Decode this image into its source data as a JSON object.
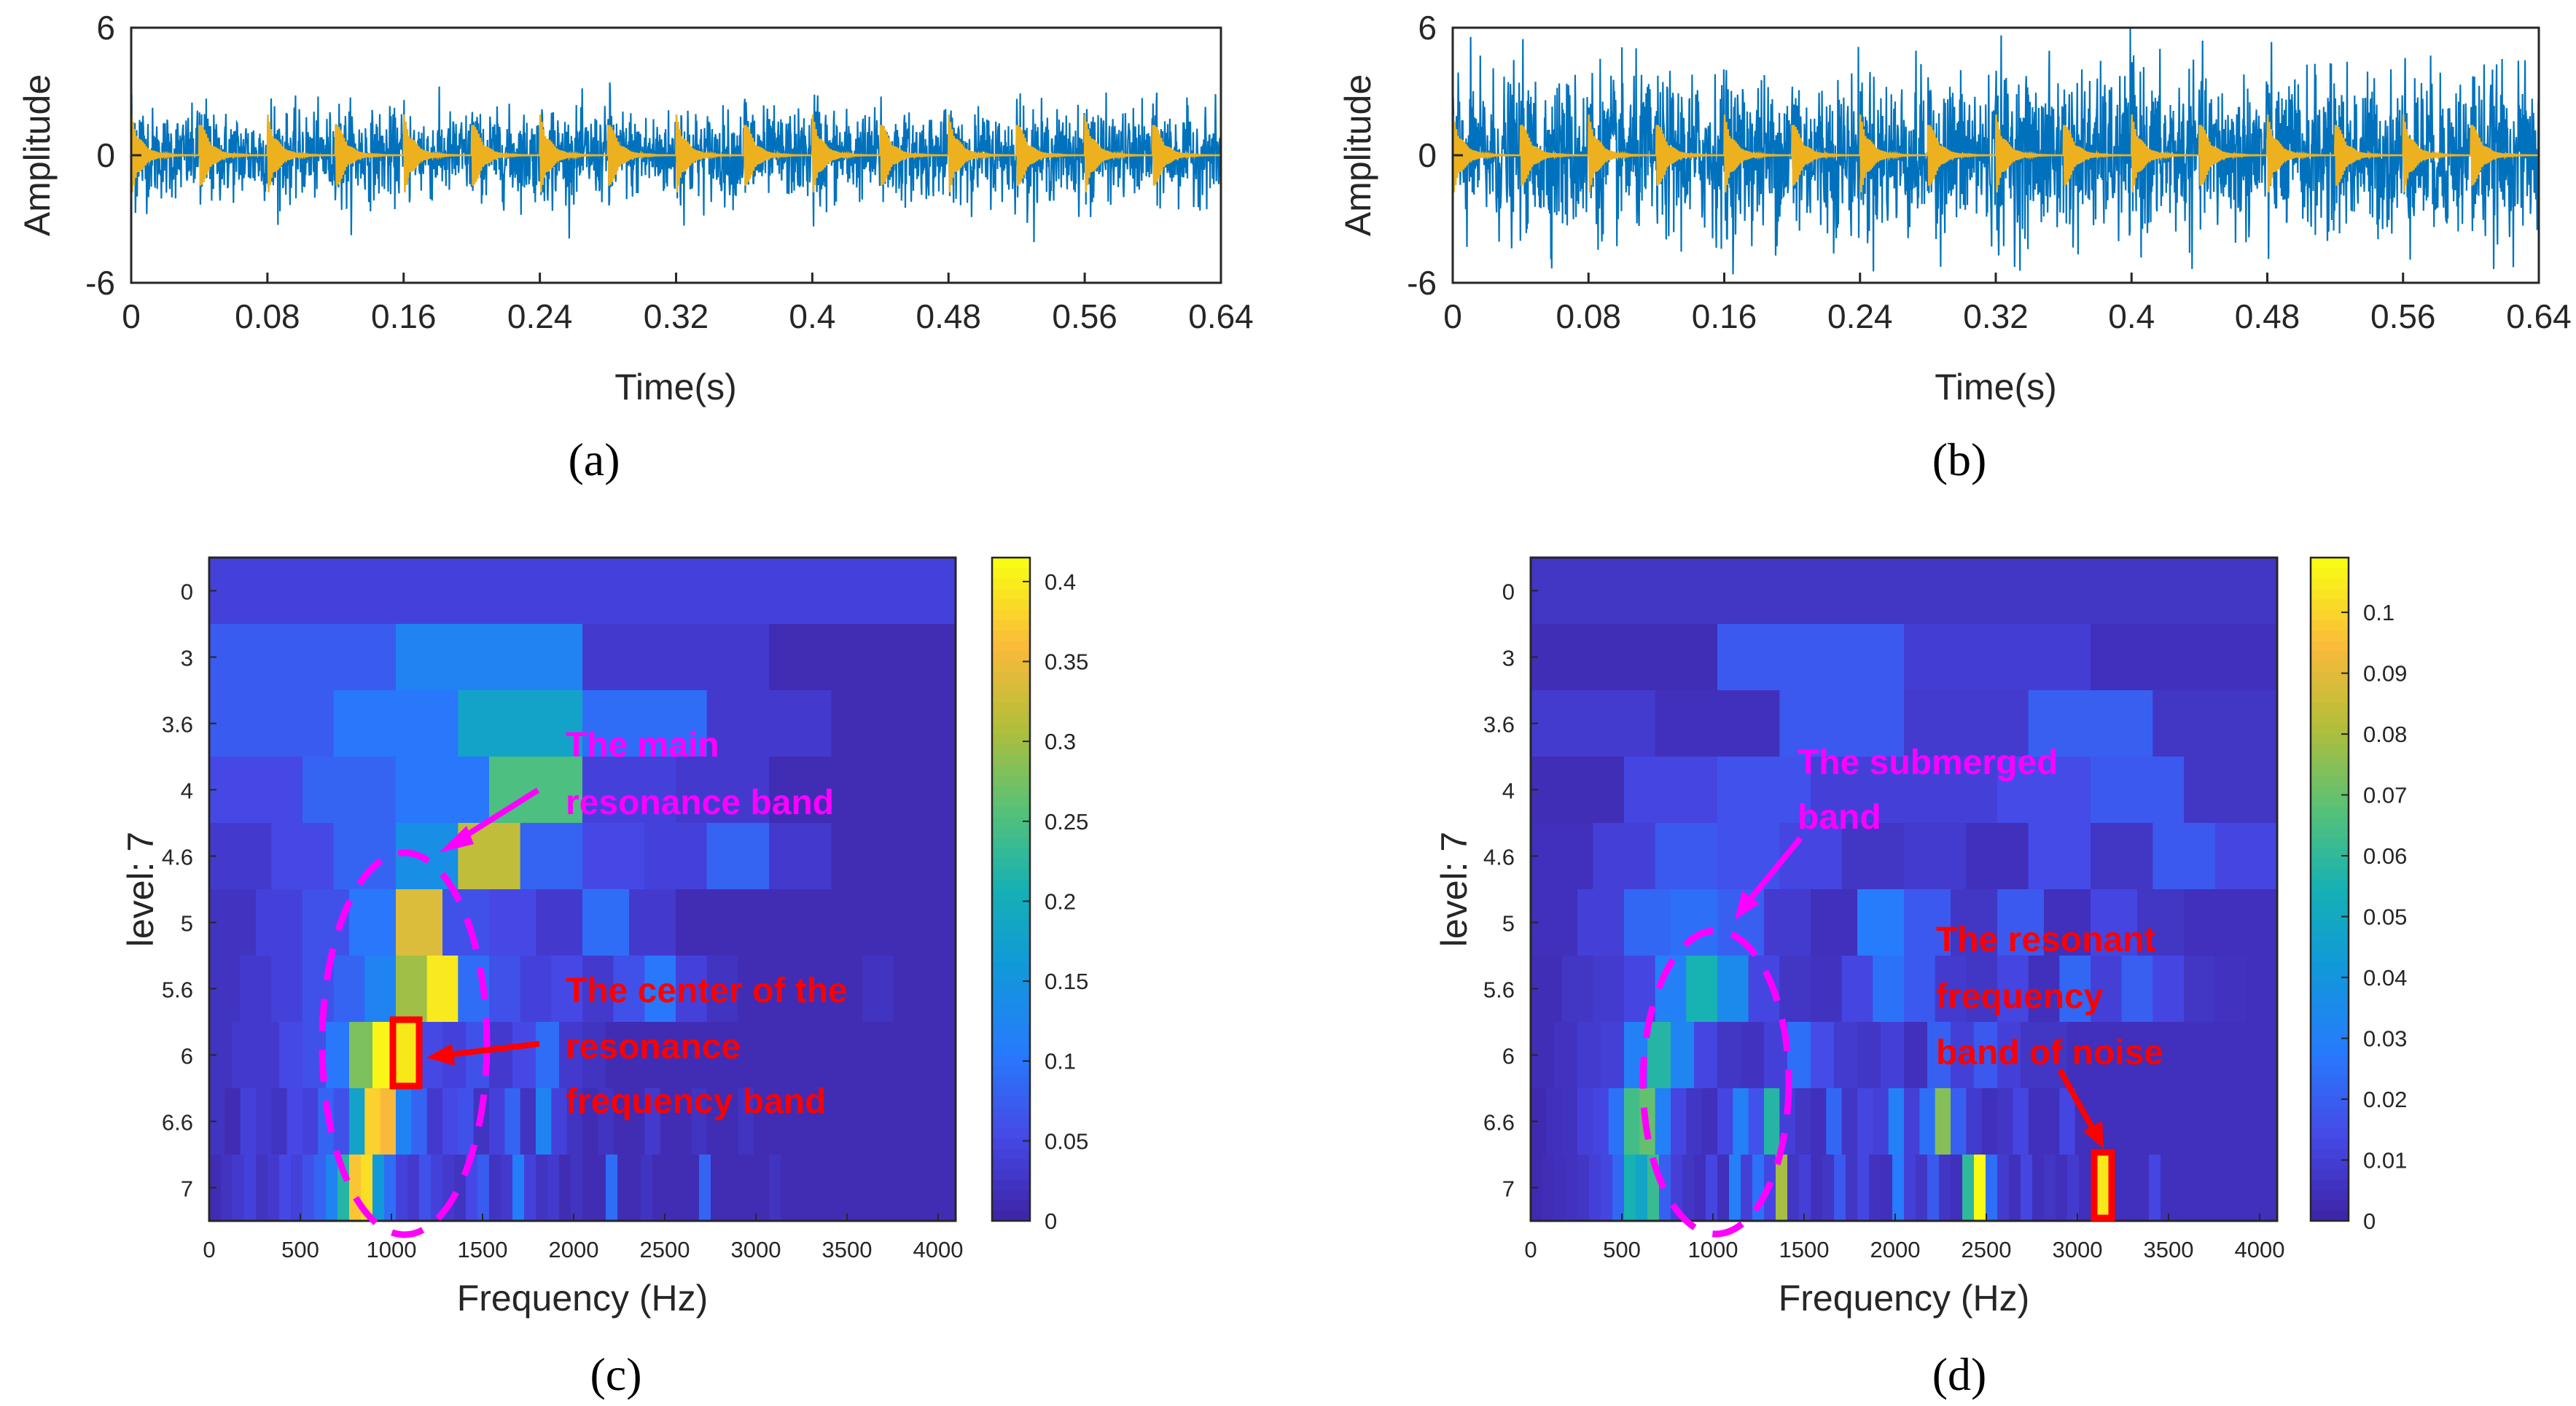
{
  "colors": {
    "signal_blue": "#0072bd",
    "impulse_yellow": "#edb120",
    "annot_magenta": "#ff00ff",
    "annot_red": "#ff0000"
  },
  "chart_data": [
    {
      "id": "a",
      "type": "line",
      "panel_label": "(a)",
      "xlabel": "Time(s)",
      "ylabel": "Amplitude",
      "xlim": [
        0,
        0.64
      ],
      "ylim": [
        -6,
        6
      ],
      "xticks": [
        "0",
        "0.08",
        "0.16",
        "0.24",
        "0.32",
        "0.4",
        "0.48",
        "0.56",
        "0.64"
      ],
      "yticks": [
        "-6",
        "0",
        "6"
      ],
      "impulse_period_s": 0.04,
      "impulse_times_s": [
        0,
        0.04,
        0.08,
        0.12,
        0.16,
        0.2,
        0.24,
        0.28,
        0.32,
        0.36,
        0.4,
        0.44,
        0.48,
        0.52,
        0.56,
        0.6
      ],
      "series": [
        {
          "role": "noisy signal",
          "color": "#0072bd",
          "typical_amplitude": 2.2,
          "peak_amplitude": 4.0
        },
        {
          "role": "periodic impulses",
          "color": "#edb120",
          "peak_amplitude": 2.0
        }
      ]
    },
    {
      "id": "b",
      "type": "line",
      "panel_label": "(b)",
      "xlabel": "Time(s)",
      "ylabel": "Amplitude",
      "xlim": [
        0,
        0.64
      ],
      "ylim": [
        -6,
        6
      ],
      "xticks": [
        "0",
        "0.08",
        "0.16",
        "0.24",
        "0.32",
        "0.4",
        "0.48",
        "0.56",
        "0.64"
      ],
      "yticks": [
        "-6",
        "0",
        "6"
      ],
      "impulse_period_s": 0.04,
      "impulse_times_s": [
        0,
        0.04,
        0.08,
        0.12,
        0.16,
        0.2,
        0.24,
        0.28,
        0.32,
        0.36,
        0.4,
        0.44,
        0.48,
        0.52,
        0.56,
        0.6
      ],
      "series": [
        {
          "role": "noisy signal",
          "color": "#0072bd",
          "typical_amplitude": 4.0,
          "peak_amplitude": 6.0
        },
        {
          "role": "periodic impulses",
          "color": "#edb120",
          "peak_amplitude": 2.0
        }
      ]
    },
    {
      "id": "c",
      "type": "heatmap",
      "panel_label": "(c)",
      "xlabel": "Frequency (Hz)",
      "ylabel": "level: 7",
      "xlim": [
        0,
        4096
      ],
      "xticks": [
        "0",
        "500",
        "1000",
        "1500",
        "2000",
        "2500",
        "3000",
        "3500",
        "4000"
      ],
      "yticks": [
        "0",
        "3",
        "3.6",
        "4",
        "4.6",
        "5",
        "5.6",
        "6",
        "6.6",
        "7"
      ],
      "colorbar": {
        "min": 0,
        "max": 0.415,
        "ticks": [
          "0",
          "0.05",
          "0.1",
          "0.15",
          "0.2",
          "0.25",
          "0.3",
          "0.35",
          "0.4"
        ]
      },
      "rows": [
        {
          "level": "0",
          "values": [
            0.04
          ]
        },
        {
          "level": "1",
          "values": [
            0.07,
            0.12,
            0.03,
            0.01
          ]
        },
        {
          "level": "1.6",
          "values": [
            0.07,
            0.1,
            0.18,
            0.09,
            0.03,
            0.01
          ]
        },
        {
          "level": "2",
          "values": [
            0.05,
            0.08,
            0.1,
            0.25,
            0.04,
            0.03,
            0.01,
            0.01
          ]
        },
        {
          "level": "2.6",
          "values": [
            0.03,
            0.05,
            0.08,
            0.14,
            0.32,
            0.08,
            0.05,
            0.04,
            0.08,
            0.03,
            0.01,
            0.01
          ]
        },
        {
          "level": "3",
          "values": [
            0.02,
            0.04,
            0.06,
            0.1,
            0.34,
            0.06,
            0.05,
            0.03,
            0.09,
            0.03,
            0.01,
            0.01,
            0.01,
            0.01,
            0.01,
            0.01
          ]
        },
        {
          "level": "3.6",
          "values": [
            0.02,
            0.03,
            0.04,
            0.06,
            0.08,
            0.12,
            0.3,
            0.4,
            0.09,
            0.06,
            0.04,
            0.05,
            0.03,
            0.06,
            0.1,
            0.04,
            0.02,
            0.01,
            0.01,
            0.01,
            0.01,
            0.02,
            0.01,
            0.01
          ]
        },
        {
          "level": "4",
          "values": [
            0.02,
            0.03,
            0.03,
            0.05,
            0.06,
            0.1,
            0.28,
            0.41,
            0.08,
            0.05,
            0.04,
            0.06,
            0.03,
            0.05,
            0.09,
            0.03,
            0.02,
            0.01,
            0.01,
            0.01,
            0.01,
            0.01,
            0.01,
            0.01,
            0.01,
            0.01,
            0.01,
            0.01,
            0.01,
            0.01,
            0.01,
            0.01
          ]
        },
        {
          "level": "4.6",
          "values": [
            0.02,
            0.01,
            0.04,
            0.03,
            0.02,
            0.05,
            0.04,
            0.08,
            0.06,
            0.18,
            0.38,
            0.36,
            0.12,
            0.08,
            0.03,
            0.05,
            0.06,
            0.02,
            0.04,
            0.08,
            0.02,
            0.12,
            0.04,
            0.02,
            0.01,
            0.02,
            0.01,
            0.01,
            0.03,
            0.01,
            0.01,
            0.02,
            0.01,
            0.01,
            0.02,
            0.01,
            0.01,
            0.01,
            0.01,
            0.01,
            0.01,
            0.01,
            0.01,
            0.01,
            0.01,
            0.01,
            0.01,
            0.01
          ]
        },
        {
          "level": "5",
          "values": [
            0.01,
            0.02,
            0.03,
            0.04,
            0.02,
            0.03,
            0.05,
            0.04,
            0.06,
            0.08,
            0.12,
            0.22,
            0.37,
            0.39,
            0.16,
            0.09,
            0.04,
            0.03,
            0.06,
            0.04,
            0.03,
            0.02,
            0.05,
            0.07,
            0.02,
            0.03,
            0.11,
            0.04,
            0.02,
            0.03,
            0.01,
            0.02,
            0.01,
            0.01,
            0.09,
            0.01,
            0.01,
            0.02,
            0.01,
            0.01,
            0.01,
            0.01,
            0.08,
            0.01,
            0.01,
            0.01,
            0.01,
            0.01,
            0.02,
            0.01,
            0.01,
            0.01,
            0.01,
            0.01,
            0.01,
            0.01,
            0.01,
            0.01,
            0.01,
            0.01,
            0.01,
            0.01,
            0.01,
            0.01
          ]
        }
      ],
      "annotations": [
        {
          "text_lines": [
            "The main",
            "resonance band"
          ],
          "color": "#ff00ff"
        },
        {
          "text_lines": [
            "The center of the",
            "resonance",
            "frequency band"
          ],
          "color": "#ff0000"
        }
      ]
    },
    {
      "id": "d",
      "type": "heatmap",
      "panel_label": "(d)",
      "xlabel": "Frequency (Hz)",
      "ylabel": "level: 7",
      "xlim": [
        0,
        4096
      ],
      "xticks": [
        "0",
        "500",
        "1000",
        "1500",
        "2000",
        "2500",
        "3000",
        "3500",
        "4000"
      ],
      "yticks": [
        "0",
        "3",
        "3.6",
        "4",
        "4.6",
        "5",
        "5.6",
        "6",
        "6.6",
        "7"
      ],
      "colorbar": {
        "min": 0,
        "max": 0.109,
        "ticks": [
          "0",
          "0.01",
          "0.02",
          "0.03",
          "0.04",
          "0.05",
          "0.06",
          "0.07",
          "0.08",
          "0.09",
          "0.1"
        ]
      },
      "rows": [
        {
          "level": "0",
          "values": [
            0.006
          ]
        },
        {
          "level": "1",
          "values": [
            0.003,
            0.018,
            0.009,
            0.004
          ]
        },
        {
          "level": "1.6",
          "values": [
            0.008,
            0.004,
            0.018,
            0.008,
            0.02,
            0.006
          ]
        },
        {
          "level": "2",
          "values": [
            0.003,
            0.012,
            0.016,
            0.01,
            0.01,
            0.014,
            0.018,
            0.006
          ]
        },
        {
          "level": "2.6",
          "values": [
            0.004,
            0.01,
            0.018,
            0.016,
            0.012,
            0.006,
            0.008,
            0.004,
            0.014,
            0.006,
            0.018,
            0.012
          ]
        },
        {
          "level": "3",
          "values": [
            0.004,
            0.01,
            0.022,
            0.024,
            0.02,
            0.008,
            0.004,
            0.028,
            0.018,
            0.006,
            0.018,
            0.004,
            0.012,
            0.006,
            0.004,
            0.004
          ]
        },
        {
          "level": "3.6",
          "values": [
            0.003,
            0.006,
            0.008,
            0.012,
            0.03,
            0.055,
            0.035,
            0.012,
            0.006,
            0.005,
            0.012,
            0.025,
            0.018,
            0.008,
            0.006,
            0.012,
            0.004,
            0.022,
            0.01,
            0.02,
            0.012,
            0.006,
            0.005,
            0.004
          ]
        },
        {
          "level": "4",
          "values": [
            0.003,
            0.005,
            0.008,
            0.01,
            0.03,
            0.058,
            0.032,
            0.012,
            0.006,
            0.005,
            0.01,
            0.024,
            0.014,
            0.008,
            0.006,
            0.01,
            0.004,
            0.02,
            0.01,
            0.018,
            0.01,
            0.006,
            0.006,
            0.004,
            0.004,
            0.004,
            0.004,
            0.004,
            0.004,
            0.004,
            0.004,
            0.004
          ]
        },
        {
          "level": "4.6",
          "values": [
            0.002,
            0.004,
            0.005,
            0.01,
            0.012,
            0.025,
            0.064,
            0.07,
            0.03,
            0.012,
            0.006,
            0.004,
            0.012,
            0.03,
            0.016,
            0.058,
            0.01,
            0.006,
            0.004,
            0.022,
            0.006,
            0.012,
            0.01,
            0.03,
            0.01,
            0.024,
            0.075,
            0.02,
            0.008,
            0.004,
            0.006,
            0.012,
            0.004,
            0.004,
            0.012,
            0.004,
            0.004,
            0.004,
            0.004,
            0.004,
            0.004,
            0.004,
            0.004,
            0.004,
            0.004,
            0.004,
            0.004,
            0.004
          ]
        },
        {
          "level": "5",
          "values": [
            0.002,
            0.003,
            0.004,
            0.005,
            0.006,
            0.01,
            0.012,
            0.022,
            0.055,
            0.048,
            0.062,
            0.02,
            0.01,
            0.006,
            0.004,
            0.012,
            0.004,
            0.03,
            0.01,
            0.025,
            0.012,
            0.08,
            0.006,
            0.01,
            0.004,
            0.006,
            0.018,
            0.006,
            0.012,
            0.005,
            0.004,
            0.028,
            0.01,
            0.006,
            0.018,
            0.006,
            0.004,
            0.06,
            0.109,
            0.024,
            0.008,
            0.004,
            0.012,
            0.004,
            0.006,
            0.004,
            0.008,
            0.004,
            0.004,
            0.004,
            0.004,
            0.004,
            0.004,
            0.012,
            0.004,
            0.004,
            0.004,
            0.004,
            0.004,
            0.004,
            0.004,
            0.004,
            0.004,
            0.004
          ]
        }
      ],
      "annotations": [
        {
          "text_lines": [
            "The submerged",
            "band"
          ],
          "color": "#ff00ff"
        },
        {
          "text_lines": [
            "The resonant",
            "frequency",
            "band of noise"
          ],
          "color": "#ff0000"
        }
      ]
    }
  ]
}
